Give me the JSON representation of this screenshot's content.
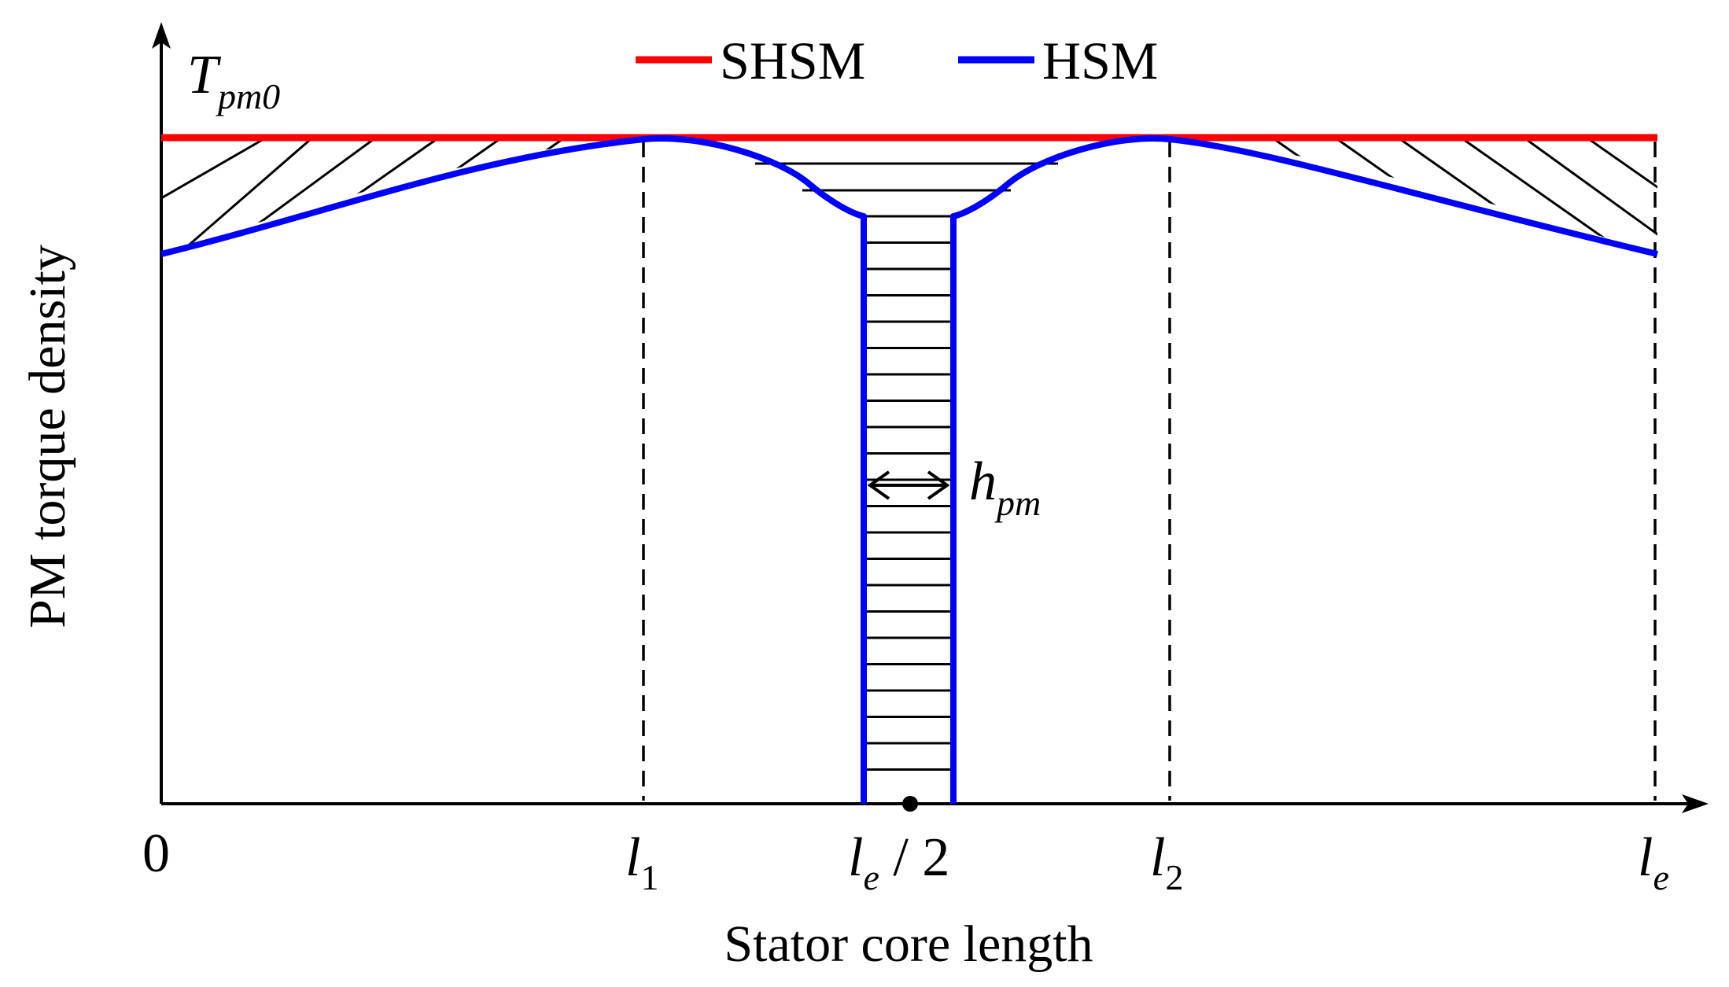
{
  "axes": {
    "x_label": "Stator core length",
    "y_label": "PM torque density",
    "y_top_label": {
      "main": "T",
      "sub": "pm0"
    }
  },
  "ticks": [
    {
      "id": "origin",
      "main": "0",
      "sub": ""
    },
    {
      "id": "l1",
      "main": "l",
      "sub": "1"
    },
    {
      "id": "mid",
      "main": "l",
      "sub": "e",
      "suffix": " / 2"
    },
    {
      "id": "l2",
      "main": "l",
      "sub": "2"
    },
    {
      "id": "le",
      "main": "l",
      "sub": "e"
    }
  ],
  "legend": [
    {
      "label": "SHSM",
      "color": "#ff0000"
    },
    {
      "label": "HSM",
      "color": "#0000ff"
    }
  ],
  "annotations": {
    "pm_width": {
      "main": "h",
      "sub": "pm"
    }
  },
  "colors": {
    "shsm": "#ff0000",
    "hsm": "#0000ff",
    "hatch": "#000000",
    "axis": "#000000"
  }
}
